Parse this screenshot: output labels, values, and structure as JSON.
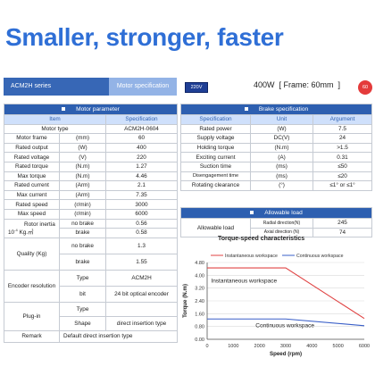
{
  "headline": "Smaller, stronger, faster",
  "series": {
    "name": "ACM2H series",
    "tab": "Motor specification"
  },
  "voltage_badge": "220V",
  "model_text": "400W  [ Frame: 60mm  ]",
  "badge": "60",
  "motor": {
    "title": "Motor parameter",
    "headers": [
      "Item",
      "Specification"
    ],
    "motor_type": {
      "label": "Motor type",
      "value": "ACM2H-0604"
    },
    "rows": [
      {
        "label": "Motor frame",
        "unit": "(mm)",
        "value": "60"
      },
      {
        "label": "Rated output",
        "unit": "(W)",
        "value": "400"
      },
      {
        "label": "Rated voltage",
        "unit": "(V)",
        "value": "220"
      },
      {
        "label": "Rated torque",
        "unit": "(N.m)",
        "value": "1.27"
      },
      {
        "label": "Max torque",
        "unit": "(N.m)",
        "value": "4.46"
      },
      {
        "label": "Rated current",
        "unit": "(Arm)",
        "value": "2.1"
      },
      {
        "label": "Max current",
        "unit": "(Arm)",
        "value": "7.35"
      },
      {
        "label": "Rated speed",
        "unit": "(r/min)",
        "value": "3000"
      },
      {
        "label": "Max speed",
        "unit": "(r/min)",
        "value": "6000"
      }
    ],
    "inertia": {
      "label": "Rotor inertia",
      "unit_prefix": "10",
      "unit_exp": "-4",
      "unit": "Kg.㎡",
      "rows": [
        {
          "sub": "no brake",
          "value": "0.56"
        },
        {
          "sub": "brake",
          "value": "0.58"
        }
      ]
    },
    "quality": {
      "label": "Quality (Kg)",
      "rows": [
        {
          "sub": "no brake",
          "value": "1.3"
        },
        {
          "sub": "brake",
          "value": "1.55"
        }
      ]
    },
    "encoder": {
      "label": "Encoder resolution",
      "rows": [
        {
          "sub": "Type",
          "value": "ACM2H"
        },
        {
          "sub": "bit",
          "value": "24 bit optical encoder"
        }
      ]
    },
    "plugin": {
      "label": "Plug-in",
      "rows": [
        {
          "sub": "Type",
          "value": ""
        },
        {
          "sub": "Shape",
          "value": "direct insertion type"
        }
      ]
    },
    "remark": {
      "label": "Remark",
      "value": "Default direct insertion type"
    }
  },
  "brake": {
    "title": "Brake specification",
    "headers": [
      "Specification",
      "Unit",
      "Argument"
    ],
    "rows": [
      {
        "label": "Rated power",
        "unit": "(W)",
        "value": "7.5"
      },
      {
        "label": "Supply voltage",
        "unit": "DC(V)",
        "value": "24"
      },
      {
        "label": "Holding torque",
        "unit": "(N.m)",
        "value": ">1.5"
      },
      {
        "label": "Exciting current",
        "unit": "(A)",
        "value": "0.31"
      },
      {
        "label": "Suction time",
        "unit": "(ms)",
        "value": "≤50"
      },
      {
        "label": "Disengagement time",
        "unit": "(ms)",
        "value": "≤20"
      },
      {
        "label": "Rotating clearance",
        "unit": "(°)",
        "value": "≤1° or ≤1°"
      }
    ]
  },
  "allowable": {
    "title": "Allowable load",
    "label": "Allowable load",
    "rows": [
      {
        "dir": "Radial direction(N)",
        "value": "245"
      },
      {
        "dir": "Axial direction (N)",
        "value": "74"
      }
    ]
  },
  "chart_data": {
    "type": "line",
    "title": "Torque-speed characteristics",
    "xlabel": "Speed (rpm)",
    "ylabel": "Torque (N.m)",
    "xlim": [
      0,
      6000
    ],
    "ylim": [
      0,
      4.8
    ],
    "x_ticks": [
      0,
      1000,
      2000,
      3000,
      4000,
      5000,
      6000
    ],
    "y_ticks": [
      0,
      0.8,
      1.6,
      2.4,
      3.2,
      4.0,
      4.8
    ],
    "y_tick_labels": [
      "0.00",
      "0.80",
      "1.60",
      "2.40",
      "3.20",
      "4.00",
      "4.80"
    ],
    "x_tick_labels": [
      "0",
      "1000",
      "2000",
      "3000",
      "4000",
      "5000",
      "6000"
    ],
    "legend_position": "top",
    "series": [
      {
        "name": "Instantaneous workspace",
        "color": "#e04343",
        "x": [
          0,
          3000,
          6000
        ],
        "y": [
          4.46,
          4.46,
          1.3
        ]
      },
      {
        "name": "Continuous workspace",
        "color": "#3a5fc8",
        "x": [
          0,
          3000,
          6000
        ],
        "y": [
          1.27,
          1.27,
          0.85
        ]
      }
    ],
    "region_labels": [
      "Instantaneous workspace",
      "Continuous workspace"
    ]
  }
}
